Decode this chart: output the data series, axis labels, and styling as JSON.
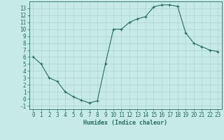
{
  "x": [
    0,
    1,
    2,
    3,
    4,
    5,
    6,
    7,
    8,
    9,
    10,
    11,
    12,
    13,
    14,
    15,
    16,
    17,
    18,
    19,
    20,
    21,
    22,
    23
  ],
  "y": [
    6.0,
    5.0,
    3.0,
    2.5,
    1.0,
    0.3,
    -0.2,
    -0.6,
    -0.3,
    5.0,
    10.0,
    10.0,
    11.0,
    11.5,
    11.8,
    13.2,
    13.5,
    13.5,
    13.3,
    9.5,
    8.0,
    7.5,
    7.0,
    6.8
  ],
  "line_color": "#2a6b5e",
  "marker": "+",
  "marker_size": 3,
  "marker_lw": 0.8,
  "xlabel": "Humidex (Indice chaleur)",
  "bg_color": "#c5eae7",
  "grid_color": "#b0d8d4",
  "ylim": [
    -1.5,
    14.0
  ],
  "xlim": [
    -0.5,
    23.5
  ],
  "yticks": [
    -1,
    0,
    1,
    2,
    3,
    4,
    5,
    6,
    7,
    8,
    9,
    10,
    11,
    12,
    13
  ],
  "xticks": [
    0,
    1,
    2,
    3,
    4,
    5,
    6,
    7,
    8,
    9,
    10,
    11,
    12,
    13,
    14,
    15,
    16,
    17,
    18,
    19,
    20,
    21,
    22,
    23
  ],
  "label_fontsize": 6,
  "tick_fontsize": 5.5
}
